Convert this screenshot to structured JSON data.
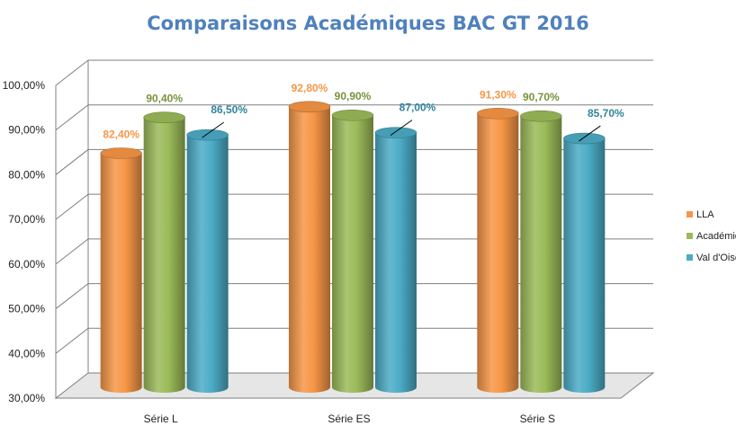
{
  "chart_data": {
    "type": "bar",
    "title": "Comparaisons Académiques BAC GT 2016",
    "categories": [
      "Série L",
      "Série ES",
      "Série S"
    ],
    "series": [
      {
        "name": "LLA",
        "color": "#f79646",
        "values": [
          82.4,
          92.8,
          91.3
        ],
        "labels": [
          "82,40%",
          "92,80%",
          "91,30%"
        ]
      },
      {
        "name": "Académie",
        "color": "#9bbb59",
        "values": [
          90.4,
          90.9,
          90.7
        ],
        "labels": [
          "90,40%",
          "90,90%",
          "90,70%"
        ]
      },
      {
        "name": "Val d'Oise",
        "color": "#4bacc6",
        "values": [
          86.5,
          87.0,
          85.7
        ],
        "labels": [
          "86,50%",
          "87,00%",
          "85,70%"
        ]
      }
    ],
    "ylim": [
      30,
      100
    ],
    "yticks": [
      "30,00%",
      "40,00%",
      "50,00%",
      "60,00%",
      "70,00%",
      "80,00%",
      "90,00%",
      "100,00%"
    ],
    "grid": true,
    "legend": "right",
    "style": "3d-cylinder",
    "label_colors": [
      "#f79646",
      "#77933c",
      "#31859c"
    ]
  }
}
